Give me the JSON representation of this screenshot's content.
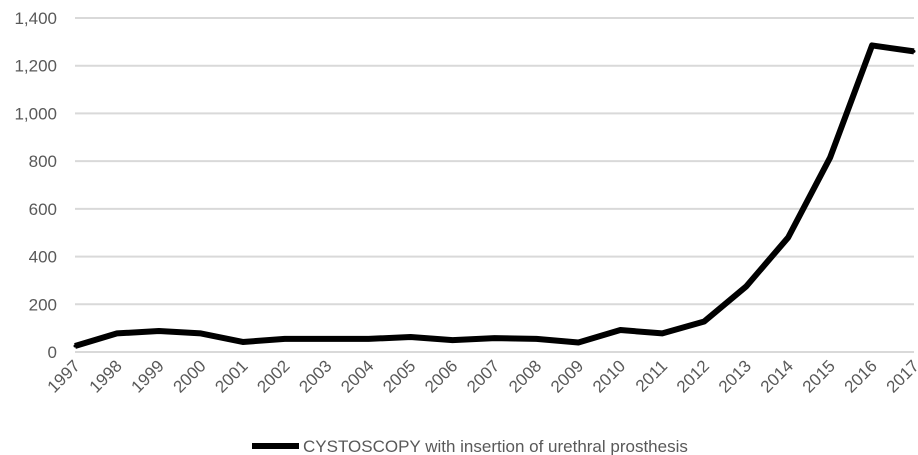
{
  "chart_data": {
    "type": "line",
    "title": "",
    "xlabel": "",
    "ylabel": "",
    "x": [
      "1997",
      "1998",
      "1999",
      "2000",
      "2001",
      "2002",
      "2003",
      "2004",
      "2005",
      "2006",
      "2007",
      "2008",
      "2009",
      "2010",
      "2011",
      "2012",
      "2013",
      "2014",
      "2015",
      "2016",
      "2017"
    ],
    "y_ticks": [
      "0",
      "200",
      "400",
      "600",
      "800",
      "1,000",
      "1,200",
      "1,400"
    ],
    "ylim": [
      0,
      1400
    ],
    "grid": "horizontal",
    "legend_position": "bottom",
    "series": [
      {
        "name": "CYSTOSCOPY with insertion of urethral prosthesis",
        "color": "#000000",
        "values": [
          25,
          78,
          88,
          78,
          42,
          55,
          55,
          55,
          63,
          50,
          58,
          55,
          40,
          92,
          78,
          128,
          275,
          480,
          815,
          1285,
          1260
        ]
      }
    ]
  }
}
